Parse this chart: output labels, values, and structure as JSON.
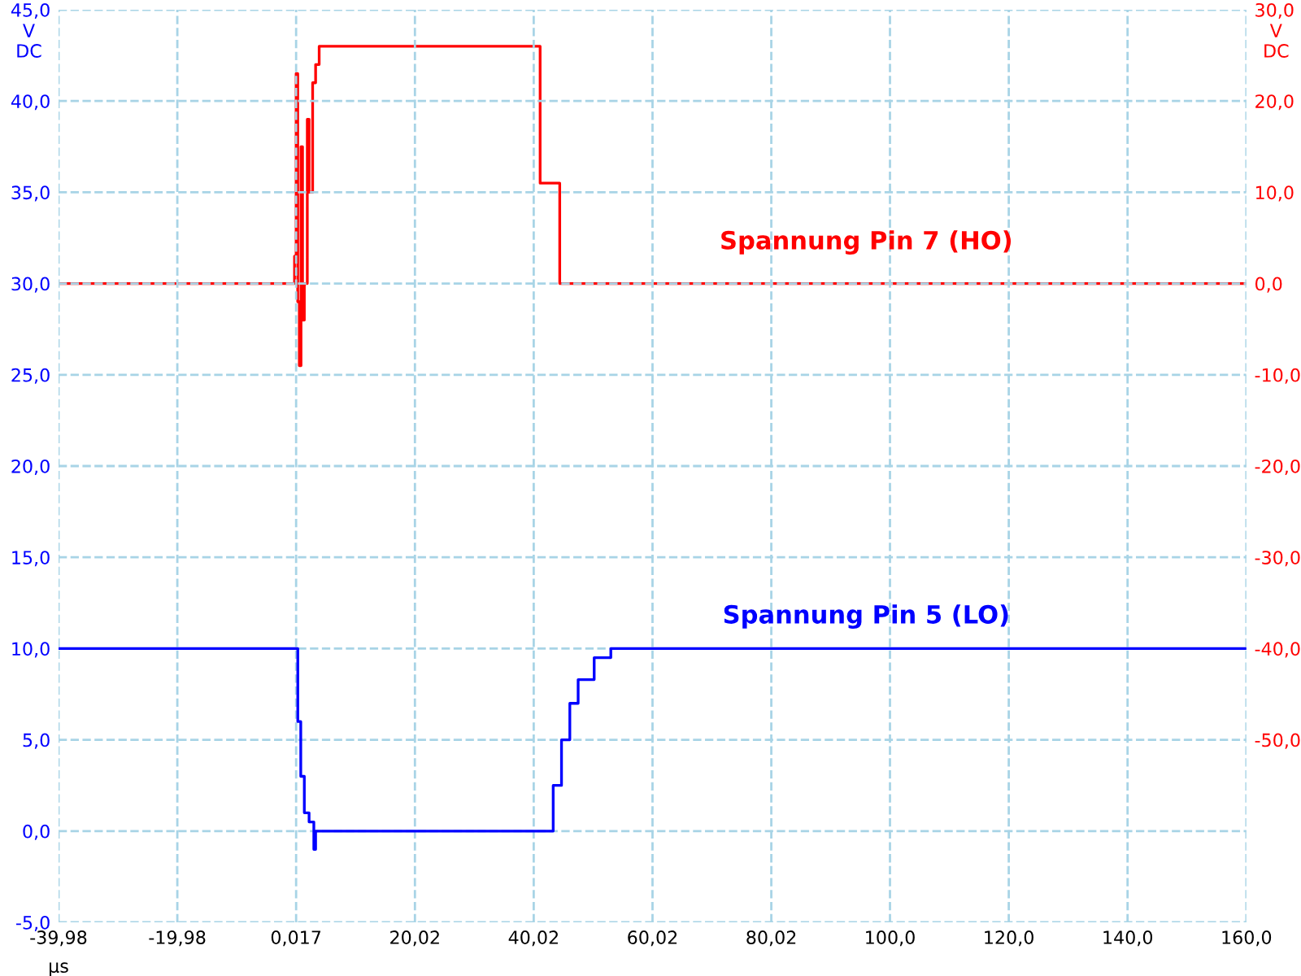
{
  "chart_data": {
    "type": "step",
    "xlabel": "µs",
    "ylabel": "V DC",
    "y2label": "V DC",
    "xlim": [
      -39.98,
      160.0
    ],
    "xticks": [
      {
        "value": -39.98,
        "label": "-39,98"
      },
      {
        "value": -19.98,
        "label": "-19,98"
      },
      {
        "value": 0.017,
        "label": "0,017"
      },
      {
        "value": 20.02,
        "label": "20,02"
      },
      {
        "value": 40.02,
        "label": "40,02"
      },
      {
        "value": 60.02,
        "label": "60,02"
      },
      {
        "value": 80.02,
        "label": "80,02"
      },
      {
        "value": 100.0,
        "label": "100,0"
      },
      {
        "value": 120.0,
        "label": "120,0"
      },
      {
        "value": 140.0,
        "label": "140,0"
      },
      {
        "value": 160.0,
        "label": "160,0"
      }
    ],
    "ylim": [
      -5,
      45
    ],
    "yticks": [
      {
        "value": -5,
        "label": "-5,0"
      },
      {
        "value": 0,
        "label": "0,0"
      },
      {
        "value": 5,
        "label": "5,0"
      },
      {
        "value": 10,
        "label": "10,0"
      },
      {
        "value": 15,
        "label": "15,0"
      },
      {
        "value": 20,
        "label": "20,0"
      },
      {
        "value": 25,
        "label": "25,0"
      },
      {
        "value": 30,
        "label": "30,0"
      },
      {
        "value": 35,
        "label": "35,0"
      },
      {
        "value": 40,
        "label": "40,0"
      },
      {
        "value": 45,
        "label": "45,0"
      }
    ],
    "y2lim": [
      -70,
      30
    ],
    "y2ticks": [
      {
        "value": -50,
        "label": "-50,0"
      },
      {
        "value": -40,
        "label": "-40,0"
      },
      {
        "value": -30,
        "label": "-30,0"
      },
      {
        "value": -20,
        "label": "-20,0"
      },
      {
        "value": -10,
        "label": "-10,0"
      },
      {
        "value": 0,
        "label": "0,0"
      },
      {
        "value": 10,
        "label": "10,0"
      },
      {
        "value": 20,
        "label": "20,0"
      },
      {
        "value": 30,
        "label": "30,0"
      }
    ],
    "grid": true,
    "series": [
      {
        "name": "Spannung Pin 7 (HO)",
        "color": "#ff0000",
        "axis": "y2",
        "x": [
          -39.98,
          -0.8,
          -0.25,
          0.02,
          0.29,
          0.56,
          0.84,
          1.1,
          1.4,
          1.9,
          2.2,
          2.8,
          3.3,
          3.9,
          5.0,
          40.8,
          41.1,
          43.9,
          44.4,
          160.0
        ],
        "values": [
          0,
          0,
          3,
          23,
          -2,
          -9,
          15,
          -4,
          0,
          18,
          10,
          22,
          24,
          26,
          26,
          26,
          11,
          11,
          0,
          0
        ]
      },
      {
        "name": "Spannung Pin 5 (LO)",
        "color": "#0000ff",
        "axis": "y",
        "x": [
          -39.98,
          -1.1,
          0.3,
          0.8,
          1.4,
          2.2,
          3.0,
          3.3,
          3.6,
          41.7,
          43.3,
          44.7,
          46.1,
          47.5,
          50.2,
          53.0,
          56.5,
          160.0
        ],
        "values": [
          10,
          10,
          6,
          3,
          1,
          0.5,
          -1,
          0,
          0,
          0,
          2.5,
          5,
          7,
          8.3,
          9.5,
          10,
          10,
          10
        ]
      }
    ]
  }
}
